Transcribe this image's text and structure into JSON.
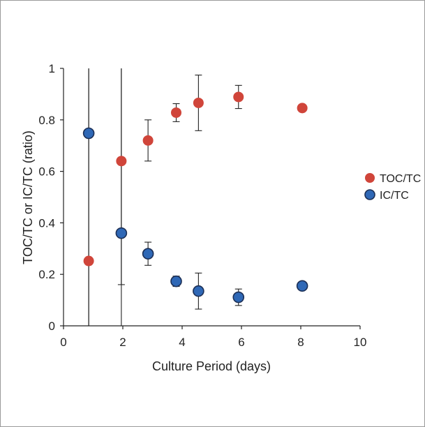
{
  "chart_data": {
    "type": "scatter",
    "title": "",
    "xlabel": "Culture Period (days)",
    "ylabel": "TOC/TC or IC/TC (ratio)",
    "xlim": [
      0,
      10
    ],
    "ylim": [
      0,
      1
    ],
    "x_ticks": [
      "0",
      "2",
      "4",
      "6",
      "8",
      "10"
    ],
    "y_ticks": [
      "0",
      "0.2",
      "0.4",
      "0.6",
      "0.8",
      "1"
    ],
    "grid": false,
    "legend_position": "right",
    "series": [
      {
        "name": "TOC/TC",
        "color": "#d0453a",
        "points": [
          {
            "x": 0.85,
            "y": 0.252,
            "err_low": 0.252,
            "err_high": 0.748
          },
          {
            "x": 1.95,
            "y": 0.64,
            "err_low": 0.48,
            "err_high": 0.36
          },
          {
            "x": 2.85,
            "y": 0.72,
            "err_low": 0.08,
            "err_high": 0.08
          },
          {
            "x": 3.8,
            "y": 0.828,
            "err_low": 0.035,
            "err_high": 0.035
          },
          {
            "x": 4.55,
            "y": 0.866,
            "err_low": 0.108,
            "err_high": 0.108
          },
          {
            "x": 5.9,
            "y": 0.889,
            "err_low": 0.045,
            "err_high": 0.045
          },
          {
            "x": 8.05,
            "y": 0.846,
            "err_low": 0,
            "err_high": 0
          }
        ]
      },
      {
        "name": "IC/TC",
        "color": "#2f68b6",
        "points": [
          {
            "x": 0.85,
            "y": 0.748,
            "err_low": 0.748,
            "err_high": 0.252
          },
          {
            "x": 1.95,
            "y": 0.36,
            "err_low": 0.36,
            "err_high": 0.64
          },
          {
            "x": 2.85,
            "y": 0.28,
            "err_low": 0.045,
            "err_high": 0.045
          },
          {
            "x": 3.8,
            "y": 0.173,
            "err_low": 0.02,
            "err_high": 0.02
          },
          {
            "x": 4.55,
            "y": 0.135,
            "err_low": 0.07,
            "err_high": 0.07
          },
          {
            "x": 5.9,
            "y": 0.111,
            "err_low": 0.032,
            "err_high": 0.032
          },
          {
            "x": 8.05,
            "y": 0.155,
            "err_low": 0,
            "err_high": 0
          }
        ]
      }
    ]
  }
}
